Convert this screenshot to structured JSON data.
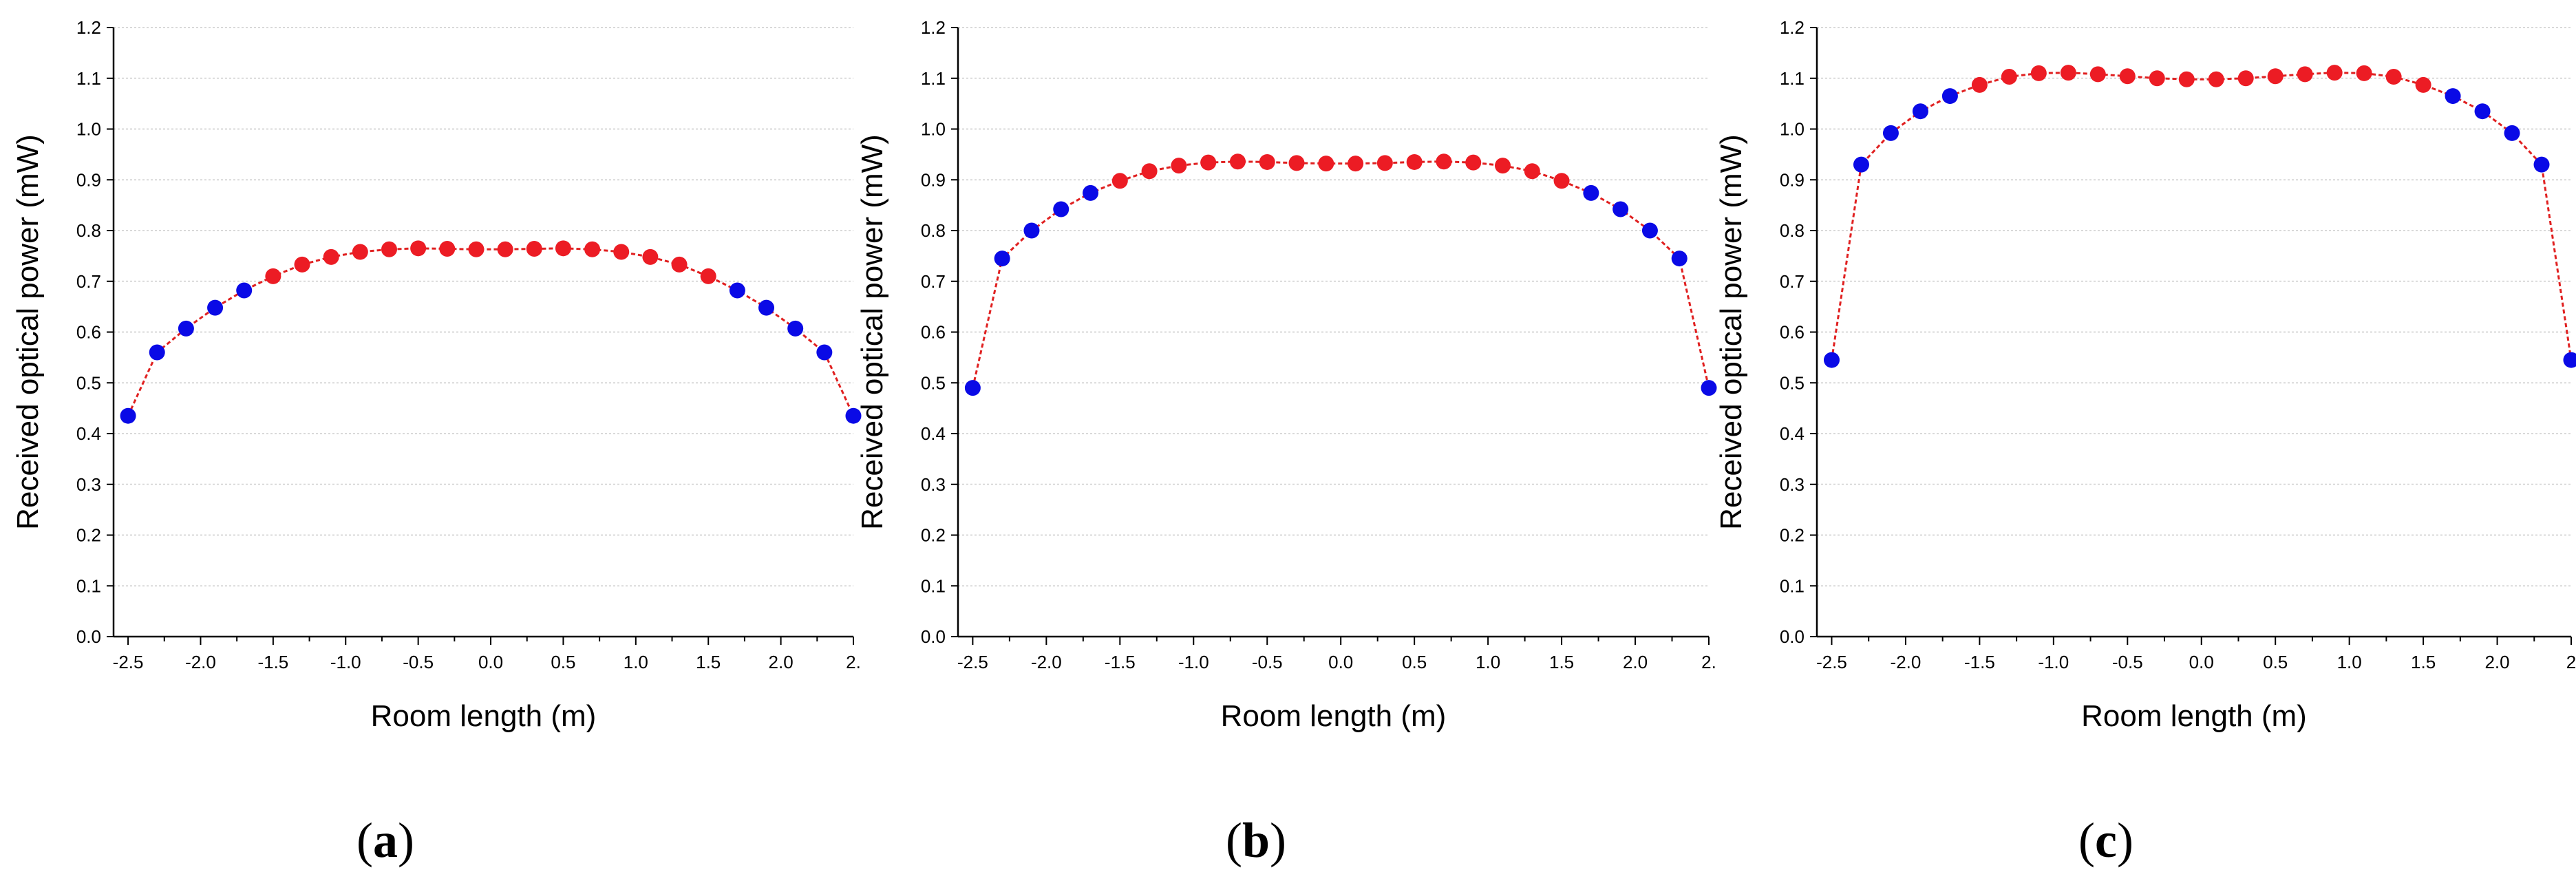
{
  "chart_data": [
    {
      "type": "scatter",
      "panel_label": "a",
      "xlabel": "Room length (m)",
      "ylabel": "Received optical power (mW)",
      "xlim": [
        -2.6,
        2.5
      ],
      "ylim": [
        0.0,
        1.2
      ],
      "x_ticks": [
        "-2.5",
        "-2.0",
        "-1.5",
        "-1.0",
        "-0.5",
        "0.0",
        "0.5",
        "1.0",
        "1.5",
        "2.0",
        "2."
      ],
      "y_ticks": [
        "0.0",
        "0.1",
        "0.2",
        "0.3",
        "0.4",
        "0.5",
        "0.6",
        "0.7",
        "0.8",
        "0.9",
        "1.0",
        "1.1",
        "1.2"
      ],
      "grid": "horizontal",
      "x": [
        -2.5,
        -2.3,
        -2.1,
        -1.9,
        -1.7,
        -1.5,
        -1.3,
        -1.1,
        -0.9,
        -0.7,
        -0.5,
        -0.3,
        -0.1,
        0.1,
        0.3,
        0.5,
        0.7,
        0.9,
        1.1,
        1.3,
        1.5,
        1.7,
        1.9,
        2.1,
        2.3,
        2.5
      ],
      "values": [
        0.435,
        0.56,
        0.607,
        0.648,
        0.682,
        0.71,
        0.733,
        0.748,
        0.758,
        0.763,
        0.765,
        0.764,
        0.763,
        0.763,
        0.764,
        0.765,
        0.763,
        0.758,
        0.748,
        0.733,
        0.71,
        0.682,
        0.648,
        0.607,
        0.56,
        0.435
      ],
      "point_groups": [
        "edge",
        "edge",
        "edge",
        "edge",
        "edge",
        "center",
        "center",
        "center",
        "center",
        "center",
        "center",
        "center",
        "center",
        "center",
        "center",
        "center",
        "center",
        "center",
        "center",
        "center",
        "center",
        "edge",
        "edge",
        "edge",
        "edge",
        "edge"
      ],
      "colors": {
        "edge": "#0a0ae6",
        "center": "#ec1c24",
        "line": "#e02020",
        "grid": "#d9d9d9"
      }
    },
    {
      "type": "scatter",
      "panel_label": "b",
      "xlabel": "Room length (m)",
      "ylabel": "Received optical power (mW)",
      "xlim": [
        -2.6,
        2.5
      ],
      "ylim": [
        0.0,
        1.2
      ],
      "x_ticks": [
        "-2.5",
        "-2.0",
        "-1.5",
        "-1.0",
        "-0.5",
        "0.0",
        "0.5",
        "1.0",
        "1.5",
        "2.0",
        "2."
      ],
      "y_ticks": [
        "0.0",
        "0.1",
        "0.2",
        "0.3",
        "0.4",
        "0.5",
        "0.6",
        "0.7",
        "0.8",
        "0.9",
        "1.0",
        "1.1",
        "1.2"
      ],
      "grid": "horizontal",
      "x": [
        -2.5,
        -2.3,
        -2.1,
        -1.9,
        -1.7,
        -1.5,
        -1.3,
        -1.1,
        -0.9,
        -0.7,
        -0.5,
        -0.3,
        -0.1,
        0.1,
        0.3,
        0.5,
        0.7,
        0.9,
        1.1,
        1.3,
        1.5,
        1.7,
        1.9,
        2.1,
        2.3,
        2.5
      ],
      "values": [
        0.49,
        0.745,
        0.8,
        0.842,
        0.874,
        0.898,
        0.917,
        0.928,
        0.934,
        0.936,
        0.935,
        0.933,
        0.932,
        0.932,
        0.933,
        0.935,
        0.936,
        0.934,
        0.928,
        0.917,
        0.898,
        0.874,
        0.842,
        0.8,
        0.745,
        0.49
      ],
      "point_groups": [
        "edge",
        "edge",
        "edge",
        "edge",
        "edge",
        "center",
        "center",
        "center",
        "center",
        "center",
        "center",
        "center",
        "center",
        "center",
        "center",
        "center",
        "center",
        "center",
        "center",
        "center",
        "center",
        "edge",
        "edge",
        "edge",
        "edge",
        "edge"
      ],
      "colors": {
        "edge": "#0a0ae6",
        "center": "#ec1c24",
        "line": "#e02020",
        "grid": "#d9d9d9"
      }
    },
    {
      "type": "scatter",
      "panel_label": "c",
      "xlabel": "Room length (m)",
      "ylabel": "Received optical power (mW)",
      "xlim": [
        -2.6,
        2.5
      ],
      "ylim": [
        0.0,
        1.2
      ],
      "x_ticks": [
        "-2.5",
        "-2.0",
        "-1.5",
        "-1.0",
        "-0.5",
        "0.0",
        "0.5",
        "1.0",
        "1.5",
        "2.0",
        "2"
      ],
      "y_ticks": [
        "0.0",
        "0.1",
        "0.2",
        "0.3",
        "0.4",
        "0.5",
        "0.6",
        "0.7",
        "0.8",
        "0.9",
        "1.0",
        "1.1",
        "1.2"
      ],
      "grid": "horizontal",
      "x": [
        -2.5,
        -2.3,
        -2.1,
        -1.9,
        -1.7,
        -1.5,
        -1.3,
        -1.1,
        -0.9,
        -0.7,
        -0.5,
        -0.3,
        -0.1,
        0.1,
        0.3,
        0.5,
        0.7,
        0.9,
        1.1,
        1.3,
        1.5,
        1.7,
        1.9,
        2.1,
        2.3,
        2.5
      ],
      "values": [
        0.545,
        0.93,
        0.992,
        1.035,
        1.065,
        1.087,
        1.103,
        1.11,
        1.111,
        1.108,
        1.104,
        1.1,
        1.098,
        1.098,
        1.1,
        1.104,
        1.108,
        1.111,
        1.11,
        1.103,
        1.087,
        1.065,
        1.035,
        0.992,
        0.93,
        0.545
      ],
      "point_groups": [
        "edge",
        "edge",
        "edge",
        "edge",
        "edge",
        "center",
        "center",
        "center",
        "center",
        "center",
        "center",
        "center",
        "center",
        "center",
        "center",
        "center",
        "center",
        "center",
        "center",
        "center",
        "center",
        "edge",
        "edge",
        "edge",
        "edge",
        "edge"
      ],
      "colors": {
        "edge": "#0a0ae6",
        "center": "#ec1c24",
        "line": "#e02020",
        "grid": "#d9d9d9"
      }
    }
  ]
}
